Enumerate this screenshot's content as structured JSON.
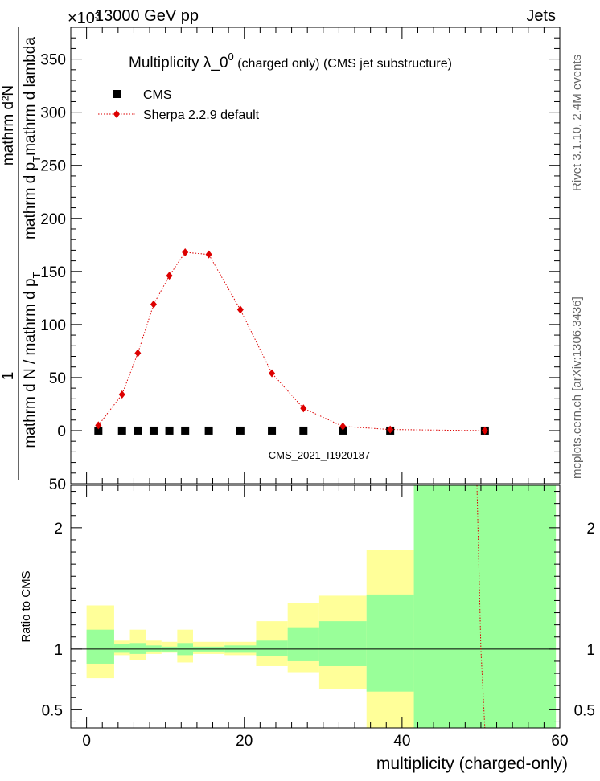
{
  "header": {
    "left": "13000 GeV pp",
    "right": "Jets",
    "exponent": "×10³"
  },
  "side_labels": {
    "rivet": "Rivet 3.1.10,  2.4M events",
    "mcplots": "mcplots.cern.ch [arXiv:1306.3436]"
  },
  "colors": {
    "mc": "#dd0000",
    "band_inner": "#99ff99",
    "band_outer": "#ffff99",
    "data": "#000000"
  },
  "chart_data": [
    {
      "type": "scatter",
      "title_main": "Multiplicity  λ_0",
      "title_sup": "0",
      "title_rest": " (charged only) (CMS jet substructure)",
      "analysis_label": "CMS_2021_I1920187",
      "ylabel_top": "1",
      "ylabel_num": "mathrm d²N",
      "ylabel_den_a": "mathrm d p",
      "ylabel_den_sub": "T",
      "ylabel_den_b": "mathrm d lambda",
      "ylabel_left": "mathrm d N / mathrm d p",
      "ylabel_left_sub": "T",
      "xlim": [
        -2,
        60
      ],
      "ylim": [
        -50,
        380
      ],
      "yticks": [
        -50,
        0,
        50,
        100,
        150,
        200,
        250,
        300,
        350
      ],
      "ytick_labels": [
        "50",
        "0",
        "50",
        "100",
        "150",
        "200",
        "250",
        "300",
        "350"
      ],
      "legend": {
        "placement": "top-left",
        "entries": [
          "CMS",
          "Sherpa 2.2.9 default"
        ]
      },
      "series": [
        {
          "name": "CMS",
          "marker": "square",
          "x": [
            1.5,
            4.5,
            6.5,
            8.5,
            10.5,
            12.5,
            15.5,
            19.5,
            23.5,
            27.5,
            32.5,
            38.5,
            50.5
          ],
          "y": [
            0,
            0,
            0,
            0,
            0,
            0,
            0,
            0,
            0,
            0,
            0,
            0,
            0
          ]
        },
        {
          "name": "Sherpa 2.2.9 default",
          "marker": "diamond",
          "x": [
            1.5,
            4.5,
            6.5,
            8.5,
            10.5,
            12.5,
            15.5,
            19.5,
            23.5,
            27.5,
            32.5,
            38.5,
            50.5
          ],
          "y": [
            5,
            34,
            73,
            119,
            146,
            168,
            166,
            114,
            54,
            21,
            4,
            1,
            0
          ]
        }
      ]
    },
    {
      "type": "area",
      "ylabel": "Ratio to CMS",
      "xlabel": "multiplicity (charged-only)",
      "xlim": [
        -2,
        60
      ],
      "ylim": [
        0.35,
        2.35
      ],
      "xticks": [
        0,
        20,
        40,
        60
      ],
      "xtick_labels": [
        "0",
        "20",
        "40",
        "60"
      ],
      "yticks": [
        0.5,
        1,
        2
      ],
      "ytick_labels": [
        "0.5",
        "1",
        "2"
      ],
      "bands": [
        {
          "x0": 0,
          "x1": 3.5,
          "inner": [
            0.88,
            1.16
          ],
          "outer": [
            0.76,
            1.36
          ]
        },
        {
          "x0": 3.5,
          "x1": 5.5,
          "inner": [
            0.97,
            1.04
          ],
          "outer": [
            0.95,
            1.07
          ]
        },
        {
          "x0": 5.5,
          "x1": 7.5,
          "inner": [
            0.96,
            1.05
          ],
          "outer": [
            0.91,
            1.16
          ]
        },
        {
          "x0": 7.5,
          "x1": 9.5,
          "inner": [
            0.98,
            1.03
          ],
          "outer": [
            0.96,
            1.07
          ]
        },
        {
          "x0": 9.5,
          "x1": 11.5,
          "inner": [
            0.98,
            1.02
          ],
          "outer": [
            0.97,
            1.06
          ]
        },
        {
          "x0": 11.5,
          "x1": 13.5,
          "inner": [
            0.95,
            1.05
          ],
          "outer": [
            0.89,
            1.16
          ]
        },
        {
          "x0": 13.5,
          "x1": 17.5,
          "inner": [
            0.98,
            1.02
          ],
          "outer": [
            0.96,
            1.06
          ]
        },
        {
          "x0": 17.5,
          "x1": 21.5,
          "inner": [
            0.97,
            1.03
          ],
          "outer": [
            0.95,
            1.06
          ]
        },
        {
          "x0": 21.5,
          "x1": 25.5,
          "inner": [
            0.94,
            1.07
          ],
          "outer": [
            0.86,
            1.23
          ]
        },
        {
          "x0": 25.5,
          "x1": 29.5,
          "inner": [
            0.9,
            1.18
          ],
          "outer": [
            0.81,
            1.38
          ]
        },
        {
          "x0": 29.5,
          "x1": 35.5,
          "inner": [
            0.86,
            1.23
          ],
          "outer": [
            0.67,
            1.44
          ]
        },
        {
          "x0": 35.5,
          "x1": 41.5,
          "inner": [
            0.65,
            1.45
          ],
          "outer": [
            0.35,
            1.82
          ]
        },
        {
          "x0": 41.5,
          "x1": 59.5,
          "inner": [
            0.35,
            2.35
          ],
          "outer": [
            0.35,
            2.35
          ]
        }
      ],
      "mc_ratio": {
        "name": "Sherpa 2.2.9 default",
        "x": [
          49.5,
          50.0,
          50.5
        ],
        "y": [
          2.35,
          1.0,
          0.35
        ]
      }
    }
  ]
}
